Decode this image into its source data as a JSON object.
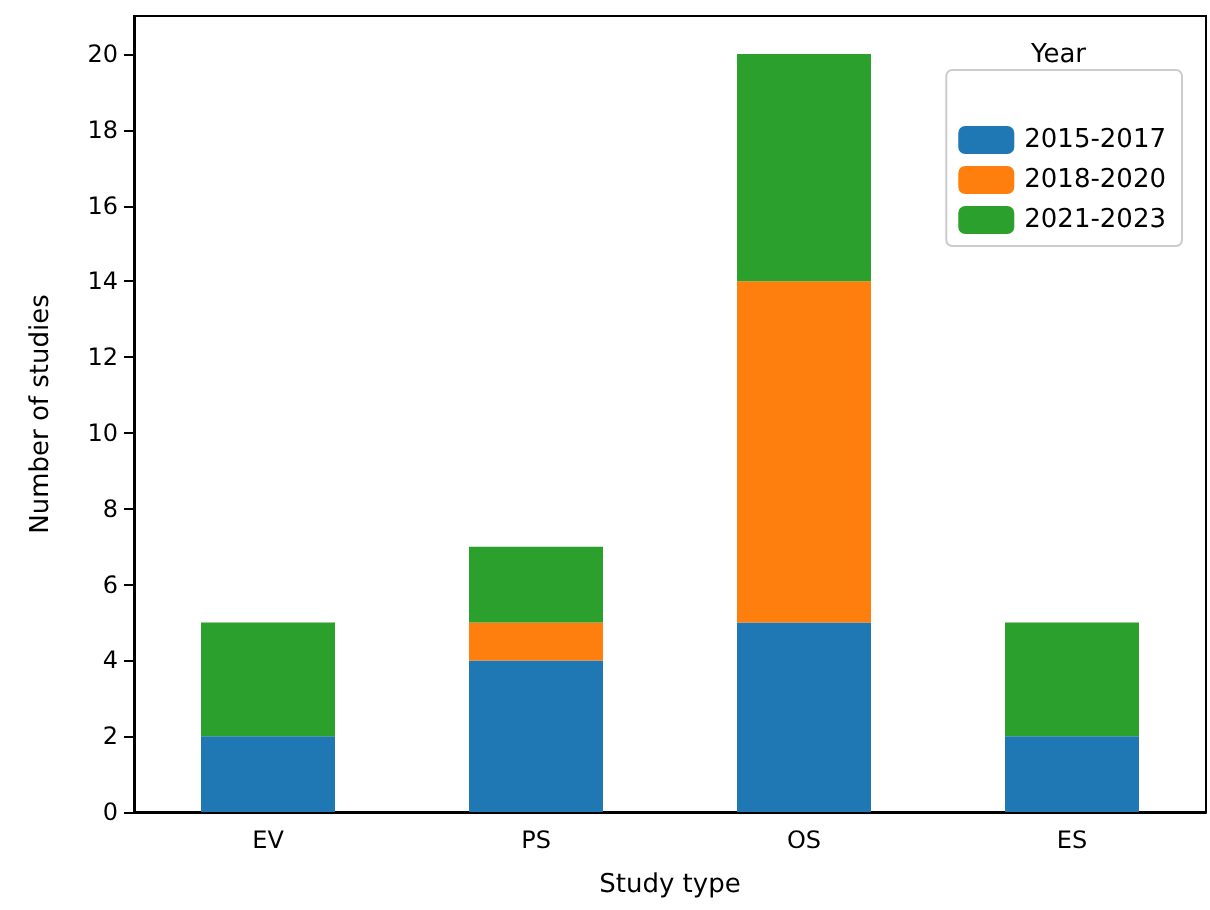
{
  "chart_data": {
    "type": "bar",
    "stacked": true,
    "xlabel": "Study type",
    "ylabel": "Number of studies",
    "legend_title": "Year",
    "legend": "top right",
    "grid": false,
    "categories": [
      "EV",
      "PS",
      "OS",
      "ES"
    ],
    "series": [
      {
        "name": "2015-2017",
        "color": "#1f77b4",
        "values": [
          2,
          4,
          5,
          2
        ]
      },
      {
        "name": "2018-2020",
        "color": "#ff7f0e",
        "values": [
          0,
          1,
          9,
          0
        ]
      },
      {
        "name": "2021-2023",
        "color": "#2ca02c",
        "values": [
          3,
          2,
          6,
          3
        ]
      }
    ],
    "ylim": [
      0,
      21
    ],
    "yticks": [
      0,
      2,
      4,
      6,
      8,
      10,
      12,
      14,
      16,
      18,
      20
    ]
  }
}
